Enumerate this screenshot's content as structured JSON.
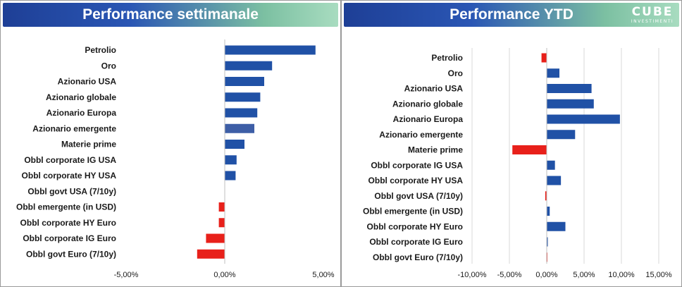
{
  "left_panel": {
    "title": "Performance settimanale"
  },
  "right_panel": {
    "title": "Performance YTD"
  },
  "logo": {
    "main": "CUBE",
    "sub": "INVESTIMENTI"
  },
  "colors": {
    "positive": "#2051a6",
    "negative": "#e8201a",
    "highlight": "#3d5ea6",
    "header_start": "#1e3f96",
    "header_end": "#a8dcc0"
  },
  "chart_data": [
    {
      "type": "bar",
      "orientation": "horizontal",
      "title": "Performance settimanale",
      "categories": [
        "Petrolio",
        "Oro",
        "Azionario USA",
        "Azionario globale",
        "Azionario Europa",
        "Azionario emergente",
        "Materie prime",
        "Obbl corporate IG USA",
        "Obbl corporate HY USA",
        "Obbl govt USA (7/10y)",
        "Obbl emergente (in USD)",
        "Obbl corporate HY Euro",
        "Obbl corporate IG Euro",
        "Obbl govt Euro (7/10y)"
      ],
      "values": [
        4.6,
        2.4,
        2.0,
        1.8,
        1.65,
        1.5,
        1.0,
        0.6,
        0.55,
        0.0,
        -0.3,
        -0.3,
        -0.95,
        -1.4
      ],
      "xlim": [
        -5,
        5
      ],
      "xticks": [
        -5,
        0,
        5
      ],
      "xtick_labels": [
        "-5,00%",
        "0,00%",
        "5,00%"
      ],
      "grid": false
    },
    {
      "type": "bar",
      "orientation": "horizontal",
      "title": "Performance YTD",
      "categories": [
        "Petrolio",
        "Oro",
        "Azionario USA",
        "Azionario globale",
        "Azionario Europa",
        "Azionario emergente",
        "Materie prime",
        "Obbl corporate IG USA",
        "Obbl corporate HY USA",
        "Obbl govt USA (7/10y)",
        "Obbl emergente (in USD)",
        "Obbl corporate HY Euro",
        "Obbl corporate IG Euro",
        "Obbl govt Euro (7/10y)"
      ],
      "values": [
        -0.7,
        1.7,
        6.0,
        6.3,
        9.8,
        3.8,
        -4.6,
        1.1,
        1.9,
        -0.2,
        0.4,
        2.5,
        0.1,
        -0.05
      ],
      "xlim": [
        -10,
        15
      ],
      "xticks": [
        -10,
        -5,
        0,
        5,
        10,
        15
      ],
      "xtick_labels": [
        "-10,00%",
        "-5,00%",
        "0,00%",
        "5,00%",
        "10,00%",
        "15,00%"
      ],
      "grid": true
    }
  ]
}
